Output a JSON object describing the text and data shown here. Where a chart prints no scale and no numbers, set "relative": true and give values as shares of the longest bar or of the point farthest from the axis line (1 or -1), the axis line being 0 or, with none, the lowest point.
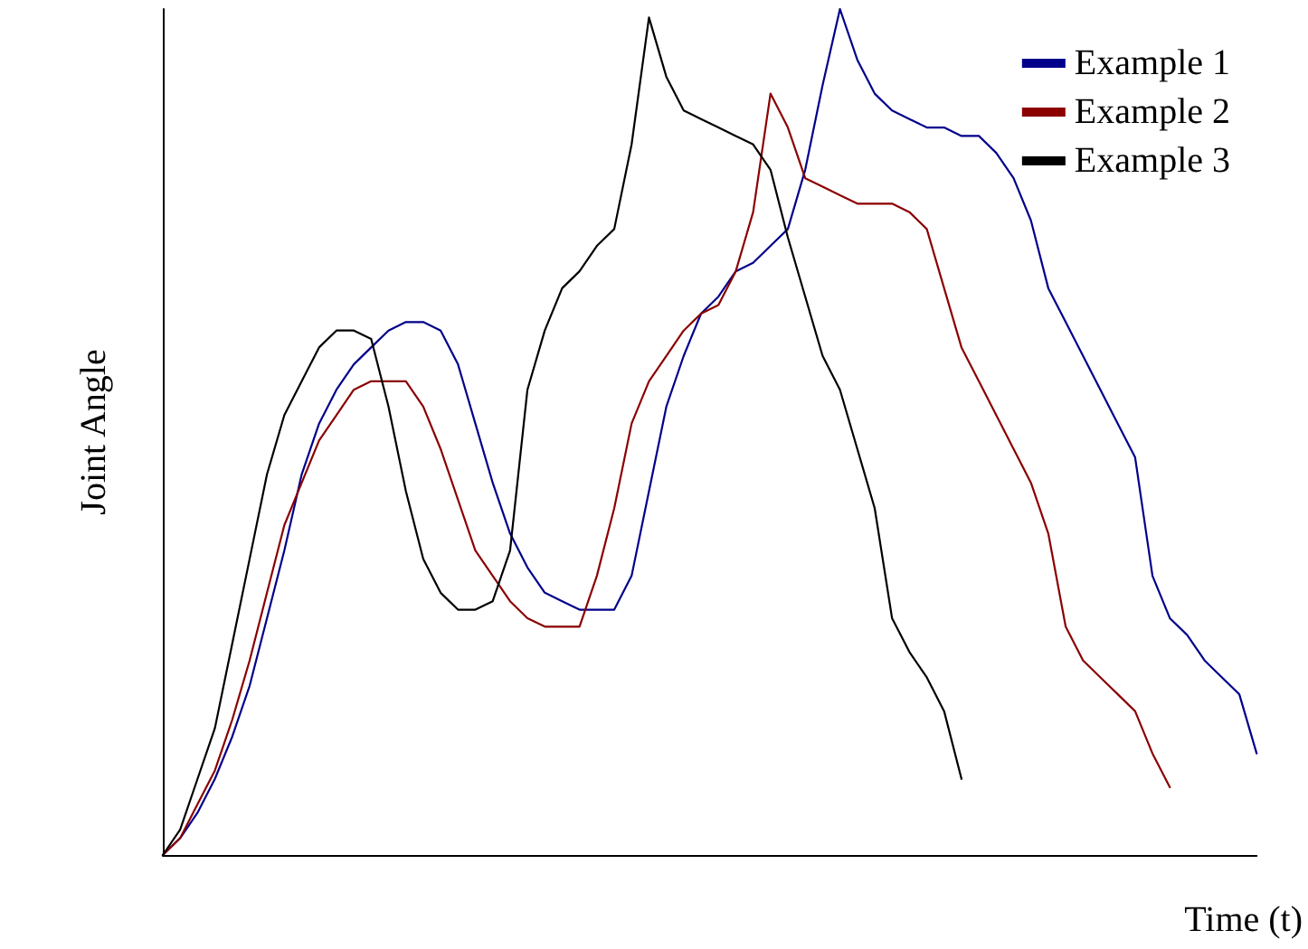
{
  "chart_data": {
    "type": "line",
    "relative": true,
    "xlabel": "Time (t)",
    "ylabel": "Joint Angle",
    "legend": "top right",
    "marker": "none",
    "grid": false,
    "categories": [
      null,
      null,
      null,
      null,
      null,
      null,
      null,
      null,
      null,
      null,
      null,
      null,
      null,
      null,
      null,
      null,
      null,
      null,
      null,
      null,
      null,
      null,
      null,
      null,
      null,
      null,
      null,
      null,
      null,
      null,
      null,
      null,
      null,
      null,
      null,
      null,
      null,
      null,
      null,
      null,
      null,
      null,
      null,
      null,
      null,
      null,
      null,
      null,
      null,
      null,
      null,
      null,
      null,
      null,
      null,
      null,
      null,
      null,
      null,
      null,
      null,
      null,
      null,
      null
    ],
    "series": [
      {
        "name": "Example 1",
        "color": "#00008b",
        "values": [
          0,
          0.02,
          0.05,
          0.09,
          0.14,
          0.2,
          0.28,
          0.36,
          0.45,
          0.51,
          0.55,
          0.58,
          0.6,
          0.62,
          0.63,
          0.63,
          0.62,
          0.58,
          0.51,
          0.44,
          0.38,
          0.34,
          0.31,
          0.3,
          0.29,
          0.29,
          0.29,
          0.33,
          0.43,
          0.53,
          0.59,
          0.64,
          0.66,
          0.69,
          0.7,
          0.72,
          0.74,
          0.81,
          0.91,
          1,
          0.94,
          0.9,
          0.88,
          0.87,
          0.86,
          0.86,
          0.85,
          0.85,
          0.83,
          0.8,
          0.75,
          0.67,
          0.63,
          0.59,
          0.55,
          0.51,
          0.47,
          0.33,
          0.28,
          0.26,
          0.23,
          0.21,
          0.19,
          0.12
        ]
      },
      {
        "name": "Example 2",
        "color": "#8b0000",
        "values": [
          0,
          0.02,
          0.06,
          0.1,
          0.16,
          0.23,
          0.31,
          0.39,
          0.44,
          0.49,
          0.52,
          0.55,
          0.56,
          0.56,
          0.56,
          0.53,
          0.48,
          0.42,
          0.36,
          0.33,
          0.3,
          0.28,
          0.27,
          0.27,
          0.27,
          0.33,
          0.41,
          0.51,
          0.56,
          0.59,
          0.62,
          0.64,
          0.65,
          0.69,
          0.76,
          0.9,
          0.86,
          0.8,
          0.79,
          0.78,
          0.77,
          0.77,
          0.77,
          0.76,
          0.74,
          0.67,
          0.6,
          0.56,
          0.52,
          0.48,
          0.44,
          0.38,
          0.27,
          0.23,
          0.21,
          0.19,
          0.17,
          0.12,
          0.08,
          null,
          null,
          null,
          null,
          null
        ]
      },
      {
        "name": "Example 3",
        "color": "#000000",
        "values": [
          0,
          0.03,
          0.09,
          0.15,
          0.25,
          0.35,
          0.45,
          0.52,
          0.56,
          0.6,
          0.62,
          0.62,
          0.61,
          0.53,
          0.43,
          0.35,
          0.31,
          0.29,
          0.29,
          0.3,
          0.36,
          0.55,
          0.62,
          0.67,
          0.69,
          0.72,
          0.74,
          0.84,
          0.99,
          0.92,
          0.88,
          0.87,
          0.86,
          0.85,
          0.84,
          0.81,
          0.73,
          0.66,
          0.59,
          0.55,
          0.48,
          0.41,
          0.28,
          0.24,
          0.21,
          0.17,
          0.09,
          null,
          null,
          null,
          null,
          null,
          null,
          null,
          null,
          null,
          null,
          null,
          null,
          null,
          null,
          null,
          null,
          null
        ]
      }
    ]
  }
}
